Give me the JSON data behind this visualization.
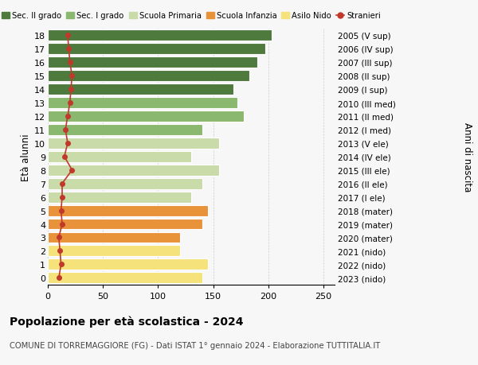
{
  "ages": [
    0,
    1,
    2,
    3,
    4,
    5,
    6,
    7,
    8,
    9,
    10,
    11,
    12,
    13,
    14,
    15,
    16,
    17,
    18
  ],
  "right_labels": [
    "2023 (nido)",
    "2022 (nido)",
    "2021 (nido)",
    "2020 (mater)",
    "2019 (mater)",
    "2018 (mater)",
    "2017 (I ele)",
    "2016 (II ele)",
    "2015 (III ele)",
    "2014 (IV ele)",
    "2013 (V ele)",
    "2012 (I med)",
    "2011 (II med)",
    "2010 (III med)",
    "2009 (I sup)",
    "2008 (II sup)",
    "2007 (III sup)",
    "2006 (IV sup)",
    "2005 (V sup)"
  ],
  "bar_values": [
    140,
    145,
    120,
    120,
    140,
    145,
    130,
    140,
    155,
    130,
    155,
    140,
    178,
    172,
    168,
    183,
    190,
    197,
    203
  ],
  "bar_colors": [
    "#f5e27a",
    "#f5e27a",
    "#f5e27a",
    "#e8923a",
    "#e8923a",
    "#e8923a",
    "#c8dba8",
    "#c8dba8",
    "#c8dba8",
    "#c8dba8",
    "#c8dba8",
    "#8ab86e",
    "#8ab86e",
    "#8ab86e",
    "#4e7a3e",
    "#4e7a3e",
    "#4e7a3e",
    "#4e7a3e",
    "#4e7a3e"
  ],
  "stranieri_values": [
    10,
    12,
    11,
    10,
    13,
    12,
    13,
    13,
    22,
    15,
    18,
    16,
    18,
    20,
    21,
    22,
    20,
    19,
    18
  ],
  "legend_labels": [
    "Sec. II grado",
    "Sec. I grado",
    "Scuola Primaria",
    "Scuola Infanzia",
    "Asilo Nido",
    "Stranieri"
  ],
  "legend_colors": [
    "#4e7a3e",
    "#8ab86e",
    "#c8dba8",
    "#e8923a",
    "#f5e27a",
    "#c0392b"
  ],
  "ylabel_left": "Età alunni",
  "ylabel_right": "Anni di nascita",
  "title_bold": "Popolazione per età scolastica - 2024",
  "subtitle": "COMUNE DI TORREMAGGIORE (FG) - Dati ISTAT 1° gennaio 2024 - Elaborazione TUTTITALIA.IT",
  "xlim": [
    0,
    260
  ],
  "xticks": [
    0,
    50,
    100,
    150,
    200,
    250
  ],
  "bg_color": "#f7f7f7",
  "bar_height": 0.82
}
